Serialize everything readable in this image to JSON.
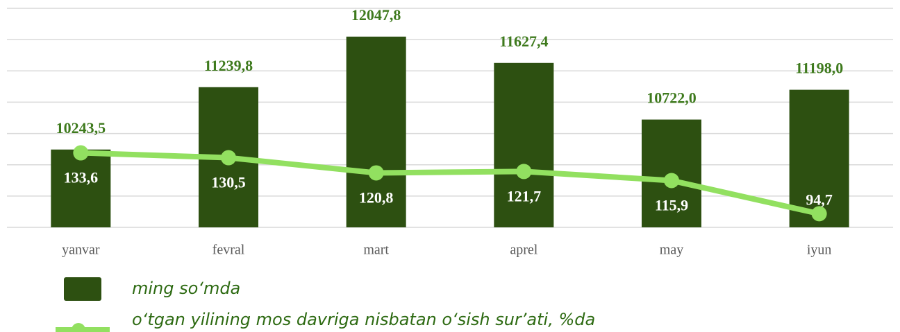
{
  "chart_data": {
    "type": "bar_line",
    "categories": [
      "yanvar",
      "fevral",
      "mart",
      "aprel",
      "may",
      "iyun"
    ],
    "series": [
      {
        "name": "ming so‘mda",
        "type": "bar",
        "color": "#2d5011",
        "values": [
          10243.5,
          11239.8,
          12047.8,
          11627.4,
          10722.0,
          11198.0
        ],
        "value_labels": [
          "10243,5",
          "11239,8",
          "12047,8",
          "11627,4",
          "10722,0",
          "11198,0"
        ]
      },
      {
        "name": "o‘tgan yilining mos davriga nisbatan o‘sish sur’ati, %da",
        "type": "line",
        "axis": "y2",
        "color": "#92e060",
        "values": [
          133.6,
          130.5,
          120.8,
          121.7,
          115.9,
          94.7
        ],
        "value_labels": [
          "133,6",
          "130,5",
          "120,8",
          "121,7",
          "115,9",
          "94,7"
        ]
      }
    ],
    "ylim": [
      9000,
      12500
    ],
    "yticks": [
      9000,
      9500,
      10000,
      10500,
      11000,
      11500,
      12000,
      12500
    ],
    "y2lim": [
      86,
      226
    ],
    "grid": true,
    "legend": "bottom-left"
  }
}
